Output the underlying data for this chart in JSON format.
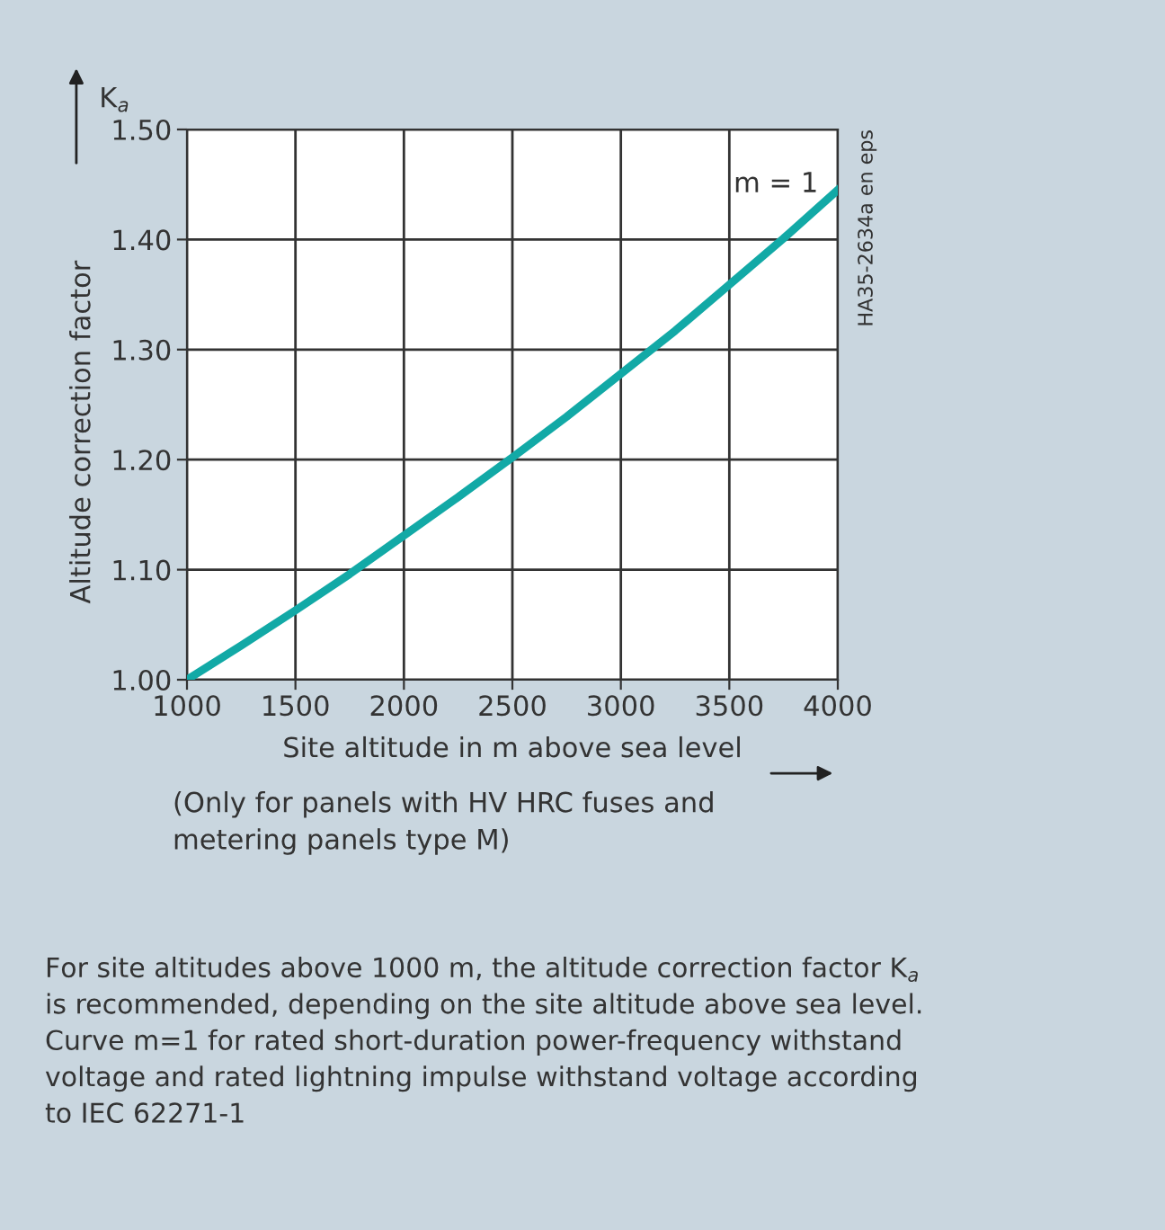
{
  "chart_data": {
    "type": "line",
    "xlabel": "Site altitude in m above sea level",
    "ylabel": "Altitude correction factor",
    "x": [
      1000,
      1250,
      1500,
      1750,
      2000,
      2250,
      2500,
      2750,
      3000,
      3250,
      3500,
      3750,
      4000
    ],
    "series": [
      {
        "name": "m = 1",
        "color": "#12a9a6",
        "values": [
          1.0,
          1.031,
          1.063,
          1.096,
          1.131,
          1.166,
          1.202,
          1.239,
          1.278,
          1.317,
          1.359,
          1.401,
          1.445
        ]
      }
    ],
    "xlim": [
      1000,
      4000
    ],
    "xticks": [
      1000,
      1500,
      2000,
      2500,
      3000,
      3500,
      4000
    ],
    "ylim": [
      1.0,
      1.5
    ],
    "yticks": [
      {
        "value": 1.0,
        "label": "1.00"
      },
      {
        "value": 1.1,
        "label": "1.10"
      },
      {
        "value": 1.2,
        "label": "1.20"
      },
      {
        "value": 1.3,
        "label": "1.30"
      },
      {
        "value": 1.4,
        "label": "1.40"
      },
      {
        "value": 1.5,
        "label": "1.50"
      }
    ],
    "grid": true,
    "line_style": "solid",
    "marker": "none",
    "annotations": [
      "K$_{a}$",
      "HA35-2634a en eps",
      "(Only for panels with HV HRC fuses and\nmetering panels type M)",
      "For site altitudes above 1000 m, the altitude correction factor K$_{a}$\nis recommended, depending on the site altitude above sea level.\nCurve m=1 for rated short-duration power-frequency withstand\nvoltage and rated lightning impulse withstand voltage according\nto IEC 62271-1"
    ]
  }
}
